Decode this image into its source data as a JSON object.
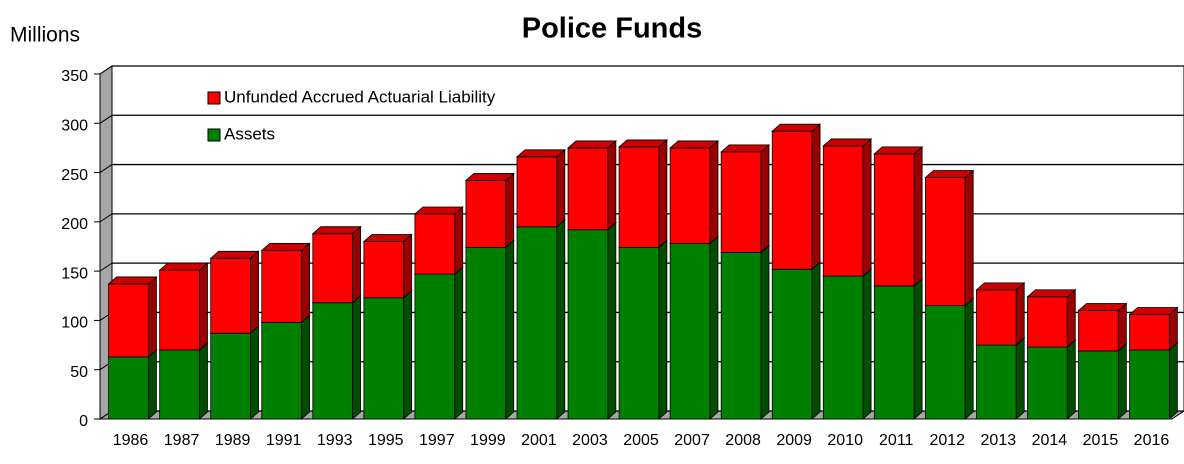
{
  "chart_data": {
    "type": "bar",
    "stacked": true,
    "three_d": true,
    "title": "Police Funds",
    "y_label": "Millions",
    "categories": [
      "1986",
      "1987",
      "1989",
      "1991",
      "1993",
      "1995",
      "1997",
      "1999",
      "2001",
      "2003",
      "2005",
      "2007",
      "2008",
      "2009",
      "2010",
      "2011",
      "2012",
      "2013",
      "2014",
      "2015",
      "2016"
    ],
    "series": [
      {
        "name": "Assets",
        "color": "#008000",
        "values": [
          63,
          70,
          87,
          98,
          118,
          123,
          147,
          174,
          195,
          192,
          174,
          178,
          169,
          152,
          145,
          135,
          115,
          75,
          73,
          69,
          70
        ]
      },
      {
        "name": "Unfunded Accrued Actuarial Liability",
        "color": "#ff0000",
        "values": [
          74,
          81,
          76,
          73,
          70,
          57,
          61,
          68,
          71,
          83,
          102,
          97,
          102,
          140,
          132,
          134,
          130,
          56,
          51,
          41,
          36
        ]
      }
    ],
    "ylim": [
      0,
      350
    ],
    "yticks": [
      0,
      50,
      100,
      150,
      200,
      250,
      300,
      350
    ],
    "grid": true,
    "legend": "top-left"
  }
}
